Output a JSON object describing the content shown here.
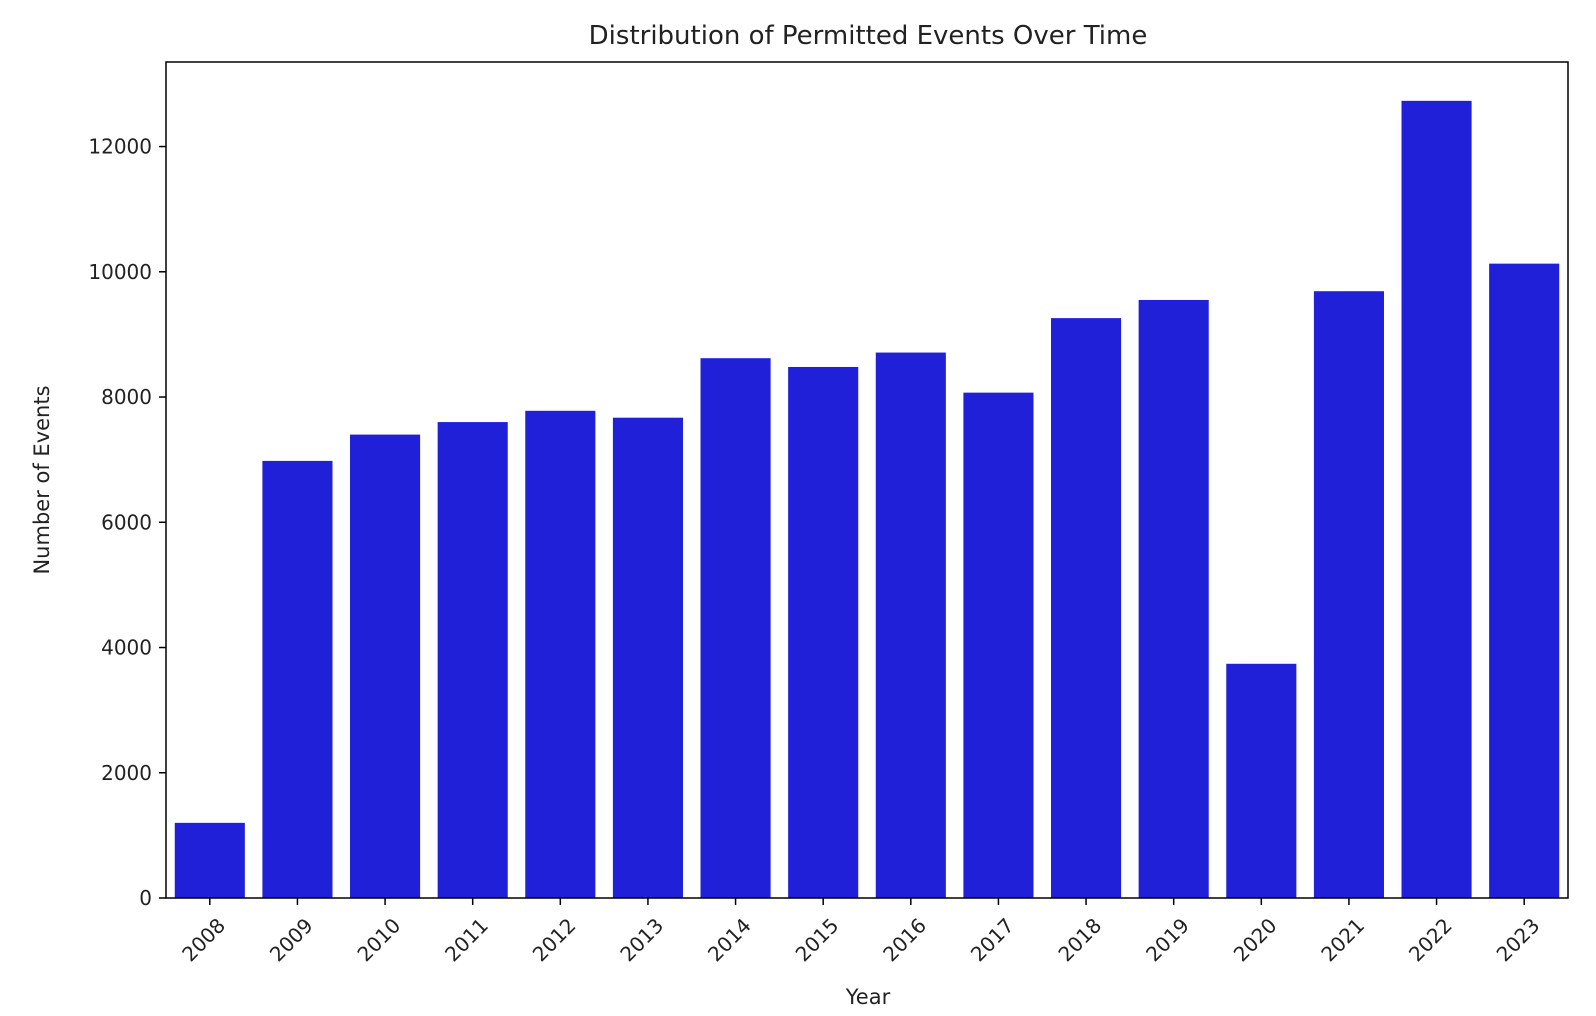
{
  "chart_data": {
    "type": "bar",
    "title": "Distribution of Permitted Events Over Time",
    "xlabel": "Year",
    "ylabel": "Number of Events",
    "categories": [
      "2008",
      "2009",
      "2010",
      "2011",
      "2012",
      "2013",
      "2014",
      "2015",
      "2016",
      "2017",
      "2018",
      "2019",
      "2020",
      "2021",
      "2022",
      "2023"
    ],
    "values": [
      1200,
      6980,
      7400,
      7600,
      7780,
      7670,
      8620,
      8480,
      8710,
      8070,
      9260,
      9550,
      3740,
      9690,
      12730,
      10130
    ],
    "ylim": [
      0,
      13350
    ],
    "yticks": [
      0,
      2000,
      4000,
      6000,
      8000,
      10000,
      12000
    ],
    "ytick_labels": [
      "0",
      "2000",
      "4000",
      "6000",
      "8000",
      "10000",
      "12000"
    ],
    "bar_color": "#2020d8",
    "grid": false,
    "legend": false,
    "xtick_rotation": "45"
  }
}
